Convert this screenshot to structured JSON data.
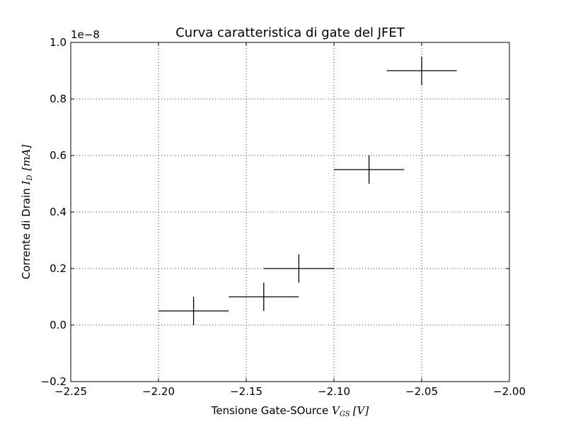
{
  "chart_data": {
    "type": "scatter",
    "title": "Curva caratteristica di gate del JFET",
    "xlabel": {
      "text": "Tensione Gate-SOurce ",
      "var": "V",
      "sub": "GS",
      "unit": "[V]"
    },
    "ylabel": {
      "text": "Corrente di Drain ",
      "var": "I",
      "sub": "D",
      "unit": "[mA]"
    },
    "offset_text": "1e−8",
    "xlim": [
      -2.25,
      -2.0
    ],
    "ylim": [
      -0.2,
      1.0
    ],
    "xticks": [
      -2.25,
      -2.2,
      -2.15,
      -2.1,
      -2.05,
      -2.0
    ],
    "xtick_labels": [
      "−2.25",
      "−2.20",
      "−2.15",
      "−2.10",
      "−2.05",
      "−2.00"
    ],
    "yticks": [
      -0.2,
      0.0,
      0.2,
      0.4,
      0.6,
      0.8,
      1.0
    ],
    "ytick_labels": [
      "−0.2",
      "0.0",
      "0.2",
      "0.4",
      "0.6",
      "0.8",
      "1.0"
    ],
    "grid": true,
    "color": "#000000",
    "points": [
      {
        "x": -2.18,
        "y": 0.05,
        "xerr": 0.02,
        "yerr": 0.05
      },
      {
        "x": -2.14,
        "y": 0.1,
        "xerr": 0.02,
        "yerr": 0.05
      },
      {
        "x": -2.12,
        "y": 0.2,
        "xerr": 0.02,
        "yerr": 0.05
      },
      {
        "x": -2.08,
        "y": 0.55,
        "xerr": 0.02,
        "yerr": 0.05
      },
      {
        "x": -2.05,
        "y": 0.9,
        "xerr": 0.02,
        "yerr": 0.05
      }
    ]
  }
}
